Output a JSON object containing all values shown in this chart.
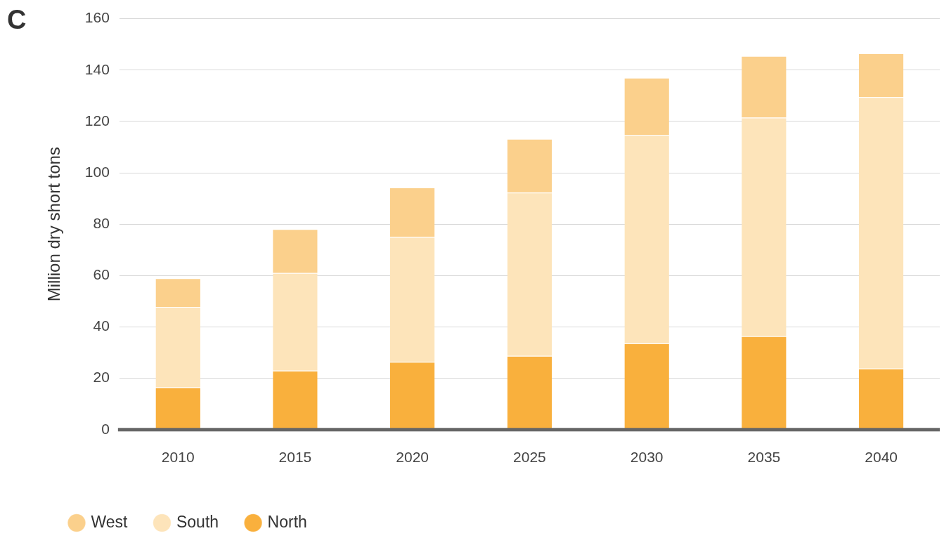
{
  "chart_data": {
    "type": "bar",
    "stacked": true,
    "ylabel": "Million dry short tons",
    "annotations": [
      "C"
    ],
    "categories": [
      "2010",
      "2015",
      "2020",
      "2025",
      "2030",
      "2035",
      "2040"
    ],
    "series": [
      {
        "name": "North",
        "color": "#f9b03d",
        "values": [
          16.5,
          23.0,
          26.4,
          28.7,
          33.6,
          36.4,
          23.8
        ]
      },
      {
        "name": "South",
        "color": "#fde4ba",
        "values": [
          31.3,
          38.0,
          48.6,
          63.6,
          81.2,
          85.1,
          105.7
        ]
      },
      {
        "name": "West",
        "color": "#fbd08c",
        "values": [
          11.1,
          17.1,
          19.3,
          20.9,
          22.2,
          24.0,
          17.0
        ]
      }
    ],
    "ylim": [
      0,
      160
    ],
    "yticks": [
      0,
      20,
      40,
      60,
      80,
      100,
      120,
      140,
      160
    ],
    "grid": "y",
    "legend": "bottom left"
  }
}
